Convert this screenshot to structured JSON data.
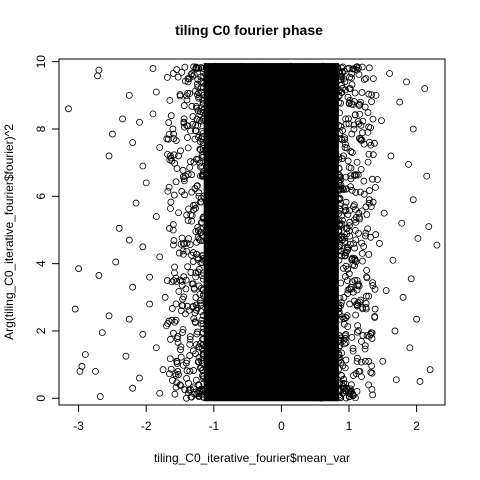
{
  "chart_data": {
    "type": "scatter",
    "title": "tiling C0 fourier phase",
    "xlabel": "tiling_C0_iterative_fourier$mean_var",
    "ylabel": "Arg(tiling_C0_iterative_fourier$fourier)^2",
    "xlim": [
      -3.29,
      2.42
    ],
    "ylim": [
      -0.2,
      10.08
    ],
    "xticks": [
      -3,
      -2,
      -1,
      0,
      1,
      2
    ],
    "yticks": [
      0,
      2,
      4,
      6,
      8,
      10
    ],
    "xtick_labels": [
      "-3",
      "-2",
      "-1",
      "0",
      "1",
      "2"
    ],
    "ytick_labels": [
      "0",
      "2",
      "4",
      "6",
      "8",
      "10"
    ],
    "marker": "open-circle",
    "grid": false,
    "legend": "none",
    "dense_region": {
      "x": [
        -1.15,
        0.85
      ],
      "y": [
        0.0,
        9.87
      ]
    },
    "points": [
      {
        "x": -3.15,
        "y": 8.6
      },
      {
        "x": -2.7,
        "y": 9.75
      },
      {
        "x": -2.72,
        "y": 9.58
      },
      {
        "x": -3.0,
        "y": 3.85
      },
      {
        "x": -3.05,
        "y": 2.65
      },
      {
        "x": -2.9,
        "y": 1.3
      },
      {
        "x": -2.95,
        "y": 0.95
      },
      {
        "x": -2.98,
        "y": 0.8
      },
      {
        "x": -2.75,
        "y": 0.8
      },
      {
        "x": -2.68,
        "y": 0.05
      },
      {
        "x": -2.65,
        "y": 1.95
      },
      {
        "x": -2.55,
        "y": 2.45
      },
      {
        "x": -2.7,
        "y": 3.65
      },
      {
        "x": -2.45,
        "y": 4.05
      },
      {
        "x": -2.4,
        "y": 5.05
      },
      {
        "x": -2.55,
        "y": 7.2
      },
      {
        "x": -2.5,
        "y": 7.85
      },
      {
        "x": -2.35,
        "y": 8.3
      },
      {
        "x": -2.25,
        "y": 9.0
      },
      {
        "x": -2.2,
        "y": 7.6
      },
      {
        "x": -2.1,
        "y": 8.2
      },
      {
        "x": -2.05,
        "y": 6.9
      },
      {
        "x": -2.0,
        "y": 6.4
      },
      {
        "x": -2.15,
        "y": 5.8
      },
      {
        "x": -2.25,
        "y": 4.7
      },
      {
        "x": -2.05,
        "y": 4.5
      },
      {
        "x": -2.2,
        "y": 3.3
      },
      {
        "x": -2.25,
        "y": 2.35
      },
      {
        "x": -2.3,
        "y": 1.25
      },
      {
        "x": -2.2,
        "y": 0.3
      },
      {
        "x": -2.1,
        "y": 0.6
      },
      {
        "x": -2.05,
        "y": 1.9
      },
      {
        "x": -1.95,
        "y": 2.8
      },
      {
        "x": -1.95,
        "y": 3.6
      },
      {
        "x": -1.9,
        "y": 9.8
      },
      {
        "x": -1.85,
        "y": 9.1
      },
      {
        "x": -1.9,
        "y": 8.45
      },
      {
        "x": -1.8,
        "y": 7.45
      },
      {
        "x": -1.85,
        "y": 5.4
      },
      {
        "x": -1.8,
        "y": 4.2
      },
      {
        "x": -1.85,
        "y": 1.5
      },
      {
        "x": -1.8,
        "y": 0.15
      },
      {
        "x": -1.75,
        "y": 0.85
      },
      {
        "x": -1.7,
        "y": 2.15
      },
      {
        "x": -1.72,
        "y": 3.0
      },
      {
        "x": -1.68,
        "y": 6.15
      },
      {
        "x": -1.65,
        "y": 8.85
      },
      {
        "x": -1.6,
        "y": 9.65
      },
      {
        "x": -1.62,
        "y": 7.05
      },
      {
        "x": -1.6,
        "y": 5.0
      },
      {
        "x": -1.58,
        "y": 3.9
      },
      {
        "x": -1.55,
        "y": 1.1
      },
      {
        "x": -1.5,
        "y": 0.4
      },
      {
        "x": -1.48,
        "y": 2.6
      },
      {
        "x": -1.45,
        "y": 4.6
      },
      {
        "x": -1.42,
        "y": 6.6
      },
      {
        "x": -1.4,
        "y": 8.1
      },
      {
        "x": -1.38,
        "y": 9.4
      },
      {
        "x": -1.35,
        "y": 1.75
      },
      {
        "x": -1.32,
        "y": 3.4
      },
      {
        "x": -1.3,
        "y": 5.6
      },
      {
        "x": -1.28,
        "y": 7.7
      },
      {
        "x": -1.25,
        "y": 9.8
      },
      {
        "x": -1.22,
        "y": 0.05
      },
      {
        "x": -1.2,
        "y": 2.9
      },
      {
        "x": -1.18,
        "y": 6.9
      },
      {
        "x": 0.9,
        "y": 9.7
      },
      {
        "x": 0.95,
        "y": 8.3
      },
      {
        "x": 0.92,
        "y": 6.2
      },
      {
        "x": 0.98,
        "y": 4.4
      },
      {
        "x": 0.93,
        "y": 2.2
      },
      {
        "x": 0.96,
        "y": 0.3
      },
      {
        "x": 1.02,
        "y": 9.2
      },
      {
        "x": 1.05,
        "y": 7.3
      },
      {
        "x": 1.08,
        "y": 5.3
      },
      {
        "x": 1.03,
        "y": 3.3
      },
      {
        "x": 1.06,
        "y": 1.4
      },
      {
        "x": 1.12,
        "y": 9.75
      },
      {
        "x": 1.15,
        "y": 8.7
      },
      {
        "x": 1.18,
        "y": 6.8
      },
      {
        "x": 1.14,
        "y": 4.9
      },
      {
        "x": 1.2,
        "y": 2.7
      },
      {
        "x": 1.16,
        "y": 0.8
      },
      {
        "x": 1.25,
        "y": 9.5
      },
      {
        "x": 1.28,
        "y": 7.9
      },
      {
        "x": 1.3,
        "y": 5.9
      },
      {
        "x": 1.26,
        "y": 3.8
      },
      {
        "x": 1.32,
        "y": 1.9
      },
      {
        "x": 1.35,
        "y": 0.1
      },
      {
        "x": 1.4,
        "y": 9.0
      },
      {
        "x": 1.42,
        "y": 6.5
      },
      {
        "x": 1.45,
        "y": 4.6
      },
      {
        "x": 1.38,
        "y": 2.4
      },
      {
        "x": 1.48,
        "y": 8.25
      },
      {
        "x": 1.52,
        "y": 5.5
      },
      {
        "x": 1.55,
        "y": 3.2
      },
      {
        "x": 1.5,
        "y": 1.1
      },
      {
        "x": 1.6,
        "y": 9.65
      },
      {
        "x": 1.62,
        "y": 7.2
      },
      {
        "x": 1.65,
        "y": 4.1
      },
      {
        "x": 1.68,
        "y": 2.0
      },
      {
        "x": 1.7,
        "y": 0.55
      },
      {
        "x": 1.75,
        "y": 8.8
      },
      {
        "x": 1.78,
        "y": 5.2
      },
      {
        "x": 1.8,
        "y": 3.0
      },
      {
        "x": 1.85,
        "y": 9.4
      },
      {
        "x": 1.88,
        "y": 6.95
      },
      {
        "x": 1.9,
        "y": 1.5
      },
      {
        "x": 1.92,
        "y": 3.55
      },
      {
        "x": 1.95,
        "y": 5.9
      },
      {
        "x": 1.95,
        "y": 8.0
      },
      {
        "x": 2.0,
        "y": 2.35
      },
      {
        "x": 2.02,
        "y": 4.75
      },
      {
        "x": 2.05,
        "y": 0.5
      },
      {
        "x": 2.12,
        "y": 9.2
      },
      {
        "x": 2.15,
        "y": 6.6
      },
      {
        "x": 2.18,
        "y": 5.1
      },
      {
        "x": 2.2,
        "y": 0.85
      },
      {
        "x": 2.3,
        "y": 4.55
      }
    ]
  }
}
